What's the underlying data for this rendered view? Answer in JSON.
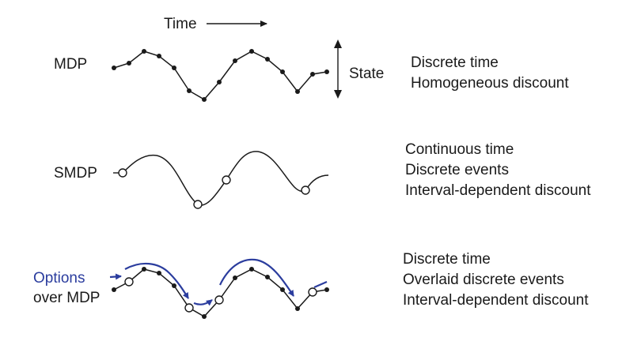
{
  "header": {
    "time_label": "Time",
    "state_label": "State"
  },
  "rows": [
    {
      "id": "mdp",
      "label": "MDP",
      "description": [
        "Discrete time",
        "Homogeneous discount"
      ]
    },
    {
      "id": "smdp",
      "label": "SMDP",
      "description": [
        "Continuous time",
        "Discrete events",
        "Interval-dependent discount"
      ]
    },
    {
      "id": "options",
      "label_line1": "Options",
      "label_line2": "over MDP",
      "description": [
        "Discrete time",
        "Overlaid discrete events",
        "Interval-dependent discount"
      ]
    }
  ],
  "colors": {
    "ink": "#1a1a1a",
    "options_blue": "#2b3d9e"
  }
}
